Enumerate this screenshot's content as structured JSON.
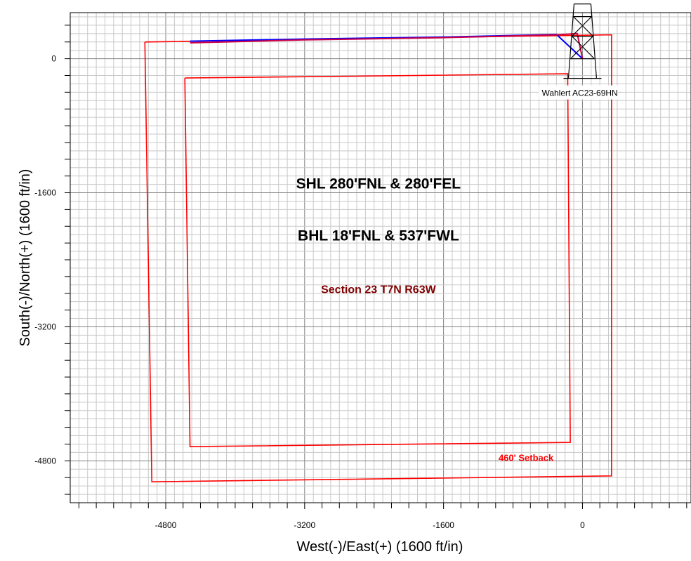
{
  "chart_data": {
    "type": "plan_view",
    "xlabel": "West(-)/East(+) (1600 ft/in)",
    "ylabel": "South(-)/North(+) (1600 ft/in)",
    "xlim": [
      -5900,
      1250
    ],
    "ylim": [
      -5300,
      550
    ],
    "x_ticks": [
      -4800,
      -3200,
      -1600,
      0
    ],
    "y_ticks": [
      0,
      -1600,
      -3200,
      -4800
    ],
    "x_tick_labels": [
      "-4800",
      "-3200",
      "-1600",
      "0"
    ],
    "y_tick_labels": [
      "0",
      "-1600",
      "-3200",
      "-4800"
    ],
    "grid": true,
    "colors": {
      "boundary": "#ff0000",
      "plan": "#0000ff",
      "actual": "#cc0044",
      "section_label": "#800000",
      "setback_label": "#ff0000"
    },
    "section_boundary": [
      [
        -5040,
        200
      ],
      [
        335,
        285
      ],
      [
        335,
        -4980
      ],
      [
        -4960,
        -5050
      ],
      [
        -5040,
        200
      ]
    ],
    "setback_boundary": [
      [
        -4580,
        -230
      ],
      [
        -170,
        -180
      ],
      [
        -140,
        -4580
      ],
      [
        -4520,
        -4630
      ],
      [
        -4580,
        -230
      ]
    ],
    "plan_path": [
      [
        -4520,
        210
      ],
      [
        -3200,
        235
      ],
      [
        -1600,
        258
      ],
      [
        -300,
        290
      ],
      [
        0,
        0
      ]
    ],
    "actual_path": [
      [
        -4520,
        190
      ],
      [
        -3200,
        225
      ],
      [
        -1600,
        252
      ],
      [
        -300,
        285
      ],
      [
        -60,
        300
      ],
      [
        0,
        0
      ]
    ],
    "well": {
      "name": "Wahlert AC23-69HN",
      "x": 0,
      "y": 0,
      "icon": "derrick-icon"
    },
    "annotations": [
      {
        "text": "SHL 280'FNL & 280'FEL",
        "x": -2350,
        "y": -1550,
        "style": "shl"
      },
      {
        "text": "BHL 18'FNL & 537'FWL",
        "x": -2350,
        "y": -2170,
        "style": "bhl"
      },
      {
        "text": "Section 23 T7N R63W",
        "x": -2350,
        "y": -2800,
        "style": "section"
      },
      {
        "text": "460' Setback",
        "x": -650,
        "y": -4800,
        "style": "setback"
      }
    ]
  }
}
